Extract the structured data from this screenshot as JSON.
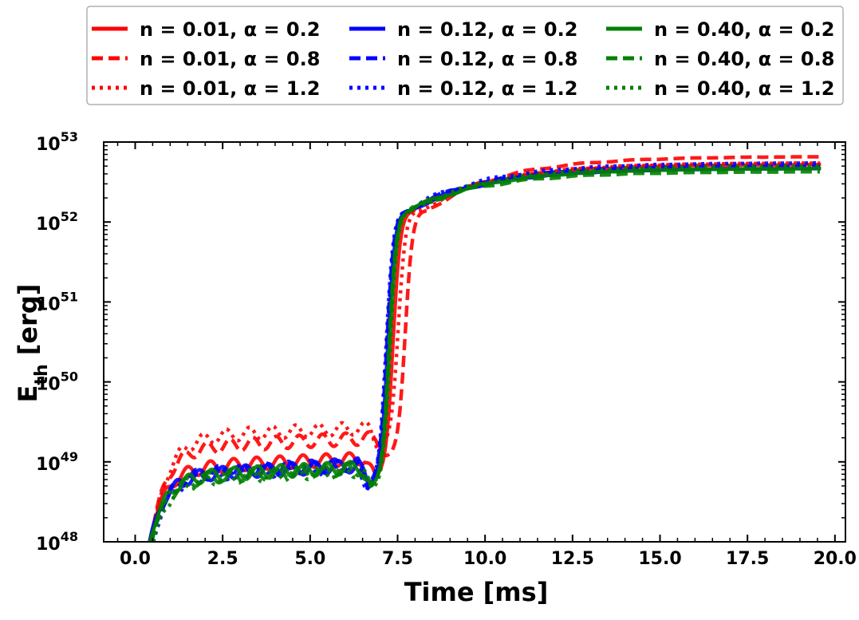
{
  "chart_data": {
    "type": "line",
    "xlabel": "Time [ms]",
    "ylabel_main": "E",
    "ylabel_sub": "th",
    "ylabel_unit": " [erg]",
    "xlim": [
      -0.9,
      20.3
    ],
    "ylim_log10": [
      48,
      53
    ],
    "y_scale": "log",
    "x_ticks": [
      0.0,
      2.5,
      5.0,
      7.5,
      10.0,
      12.5,
      15.0,
      17.5,
      20.0
    ],
    "x_tick_labels": [
      "0.0",
      "2.5",
      "5.0",
      "7.5",
      "10.0",
      "12.5",
      "15.0",
      "17.5",
      "20.0"
    ],
    "y_ticks_log10": [
      48,
      49,
      50,
      51,
      52,
      53
    ],
    "y_tick_base": "10",
    "y_tick_exponents": [
      "48",
      "49",
      "50",
      "51",
      "52",
      "53"
    ],
    "legend_placement": "top, outside plot, 3 columns",
    "series": [
      {
        "name": "n  = 0.01, α = 0.2",
        "color": "#ff0000",
        "dash": "solid",
        "plateau_log10": 48.95,
        "collapse_ms": 7.1,
        "final_log10": 52.72
      },
      {
        "name": "n  = 0.01, α = 0.8",
        "color": "#ff0000",
        "dash": "dashed",
        "plateau_log10": 49.2,
        "collapse_ms": 7.45,
        "final_log10": 52.82
      },
      {
        "name": "n  = 0.01, α = 1.2",
        "color": "#ff0000",
        "dash": "dotted",
        "plateau_log10": 49.33,
        "collapse_ms": 7.25,
        "final_log10": 52.74
      },
      {
        "name": "n  = 0.12, α = 0.2",
        "color": "#0000ff",
        "dash": "solid",
        "plateau_log10": 48.86,
        "collapse_ms": 6.95,
        "final_log10": 52.67
      },
      {
        "name": "n  = 0.12, α = 0.8",
        "color": "#0000ff",
        "dash": "dashed",
        "plateau_log10": 48.88,
        "collapse_ms": 6.92,
        "final_log10": 52.7
      },
      {
        "name": "n  = 0.12, α = 1.2",
        "color": "#0000ff",
        "dash": "dotted",
        "plateau_log10": 48.85,
        "collapse_ms": 6.9,
        "final_log10": 52.74
      },
      {
        "name": "n  = 0.40, α = 0.2",
        "color": "#008000",
        "dash": "solid",
        "plateau_log10": 48.84,
        "collapse_ms": 7.0,
        "final_log10": 52.67
      },
      {
        "name": "n  = 0.40, α = 0.8",
        "color": "#008000",
        "dash": "dashed",
        "plateau_log10": 48.82,
        "collapse_ms": 6.98,
        "final_log10": 52.63
      },
      {
        "name": "n  = 0.40, α = 1.2",
        "color": "#008000",
        "dash": "dotted",
        "plateau_log10": 48.8,
        "collapse_ms": 7.02,
        "final_log10": 52.7
      }
    ]
  }
}
